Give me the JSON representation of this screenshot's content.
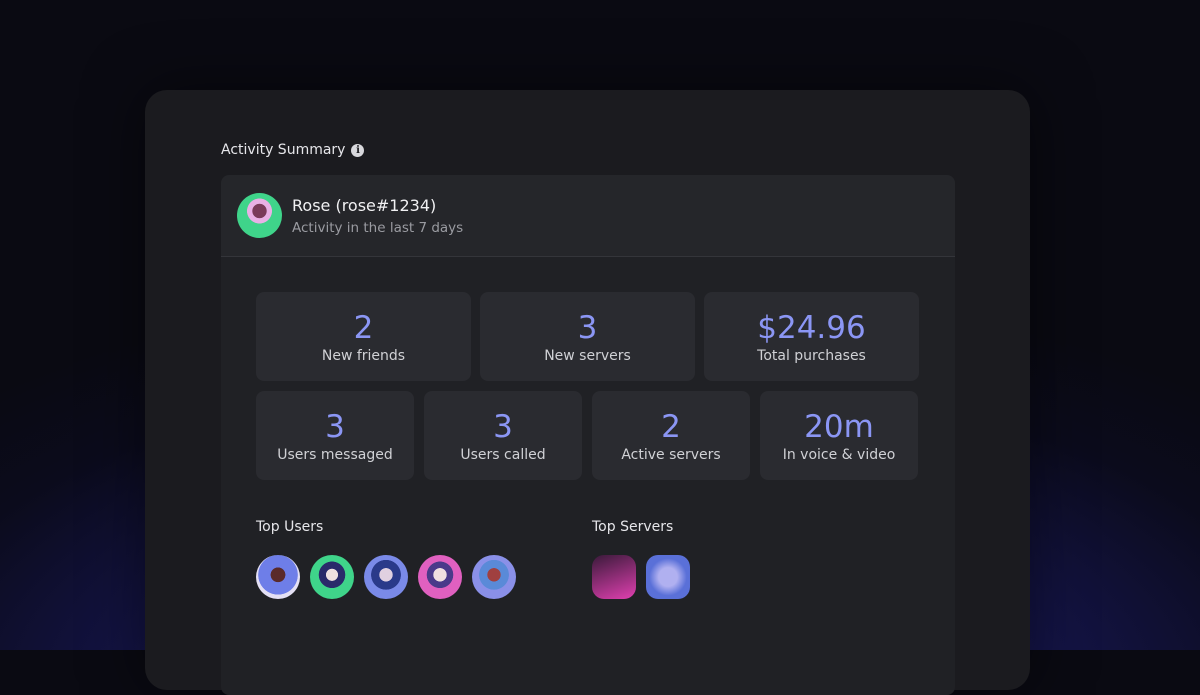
{
  "title": "Activity Summary",
  "user": {
    "name": "Rose (rose#1234)",
    "subtitle": "Activity in the last 7 days"
  },
  "stats_row1": [
    {
      "value": "2",
      "label": "New friends"
    },
    {
      "value": "3",
      "label": "New servers"
    },
    {
      "value": "$24.96",
      "label": "Total purchases"
    }
  ],
  "stats_row2": [
    {
      "value": "3",
      "label": "Users messaged"
    },
    {
      "value": "3",
      "label": "Users called"
    },
    {
      "value": "2",
      "label": "Active servers"
    },
    {
      "value": "20m",
      "label": "In voice & video"
    }
  ],
  "top_users": {
    "label": "Top Users"
  },
  "top_servers": {
    "label": "Top Servers"
  },
  "colors": {
    "accent": "#8b96f4",
    "panel": "#1b1b1f",
    "tile": "#2a2b30"
  }
}
